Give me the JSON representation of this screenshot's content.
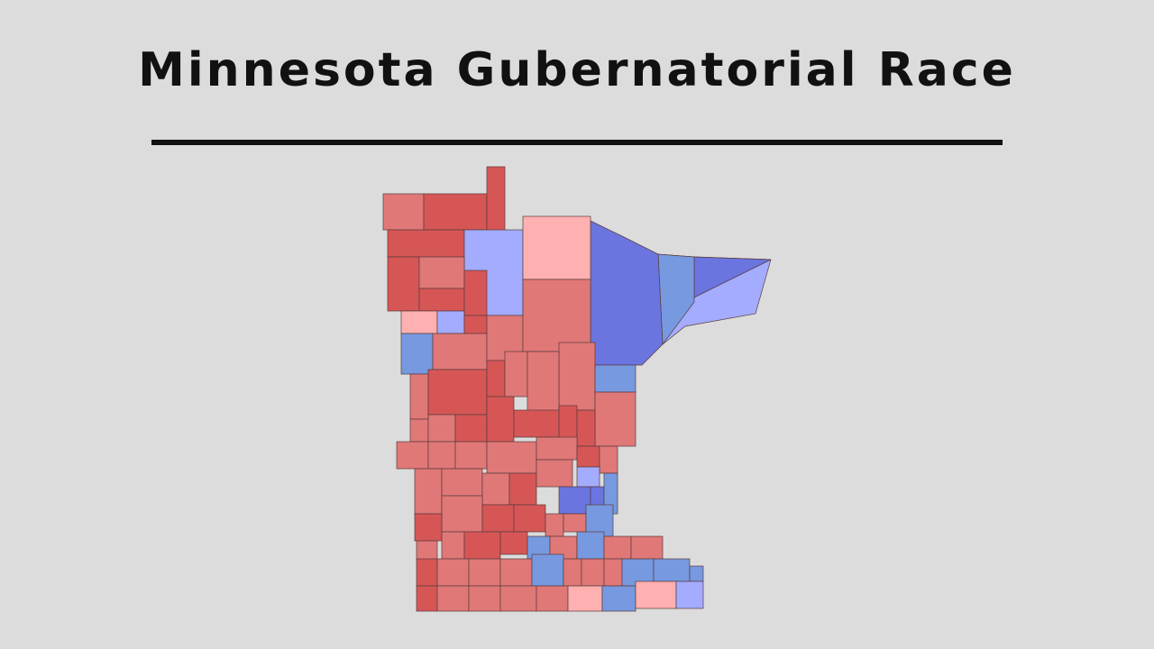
{
  "header": {
    "title": "Minnesota Gubernatorial Race"
  }
}
